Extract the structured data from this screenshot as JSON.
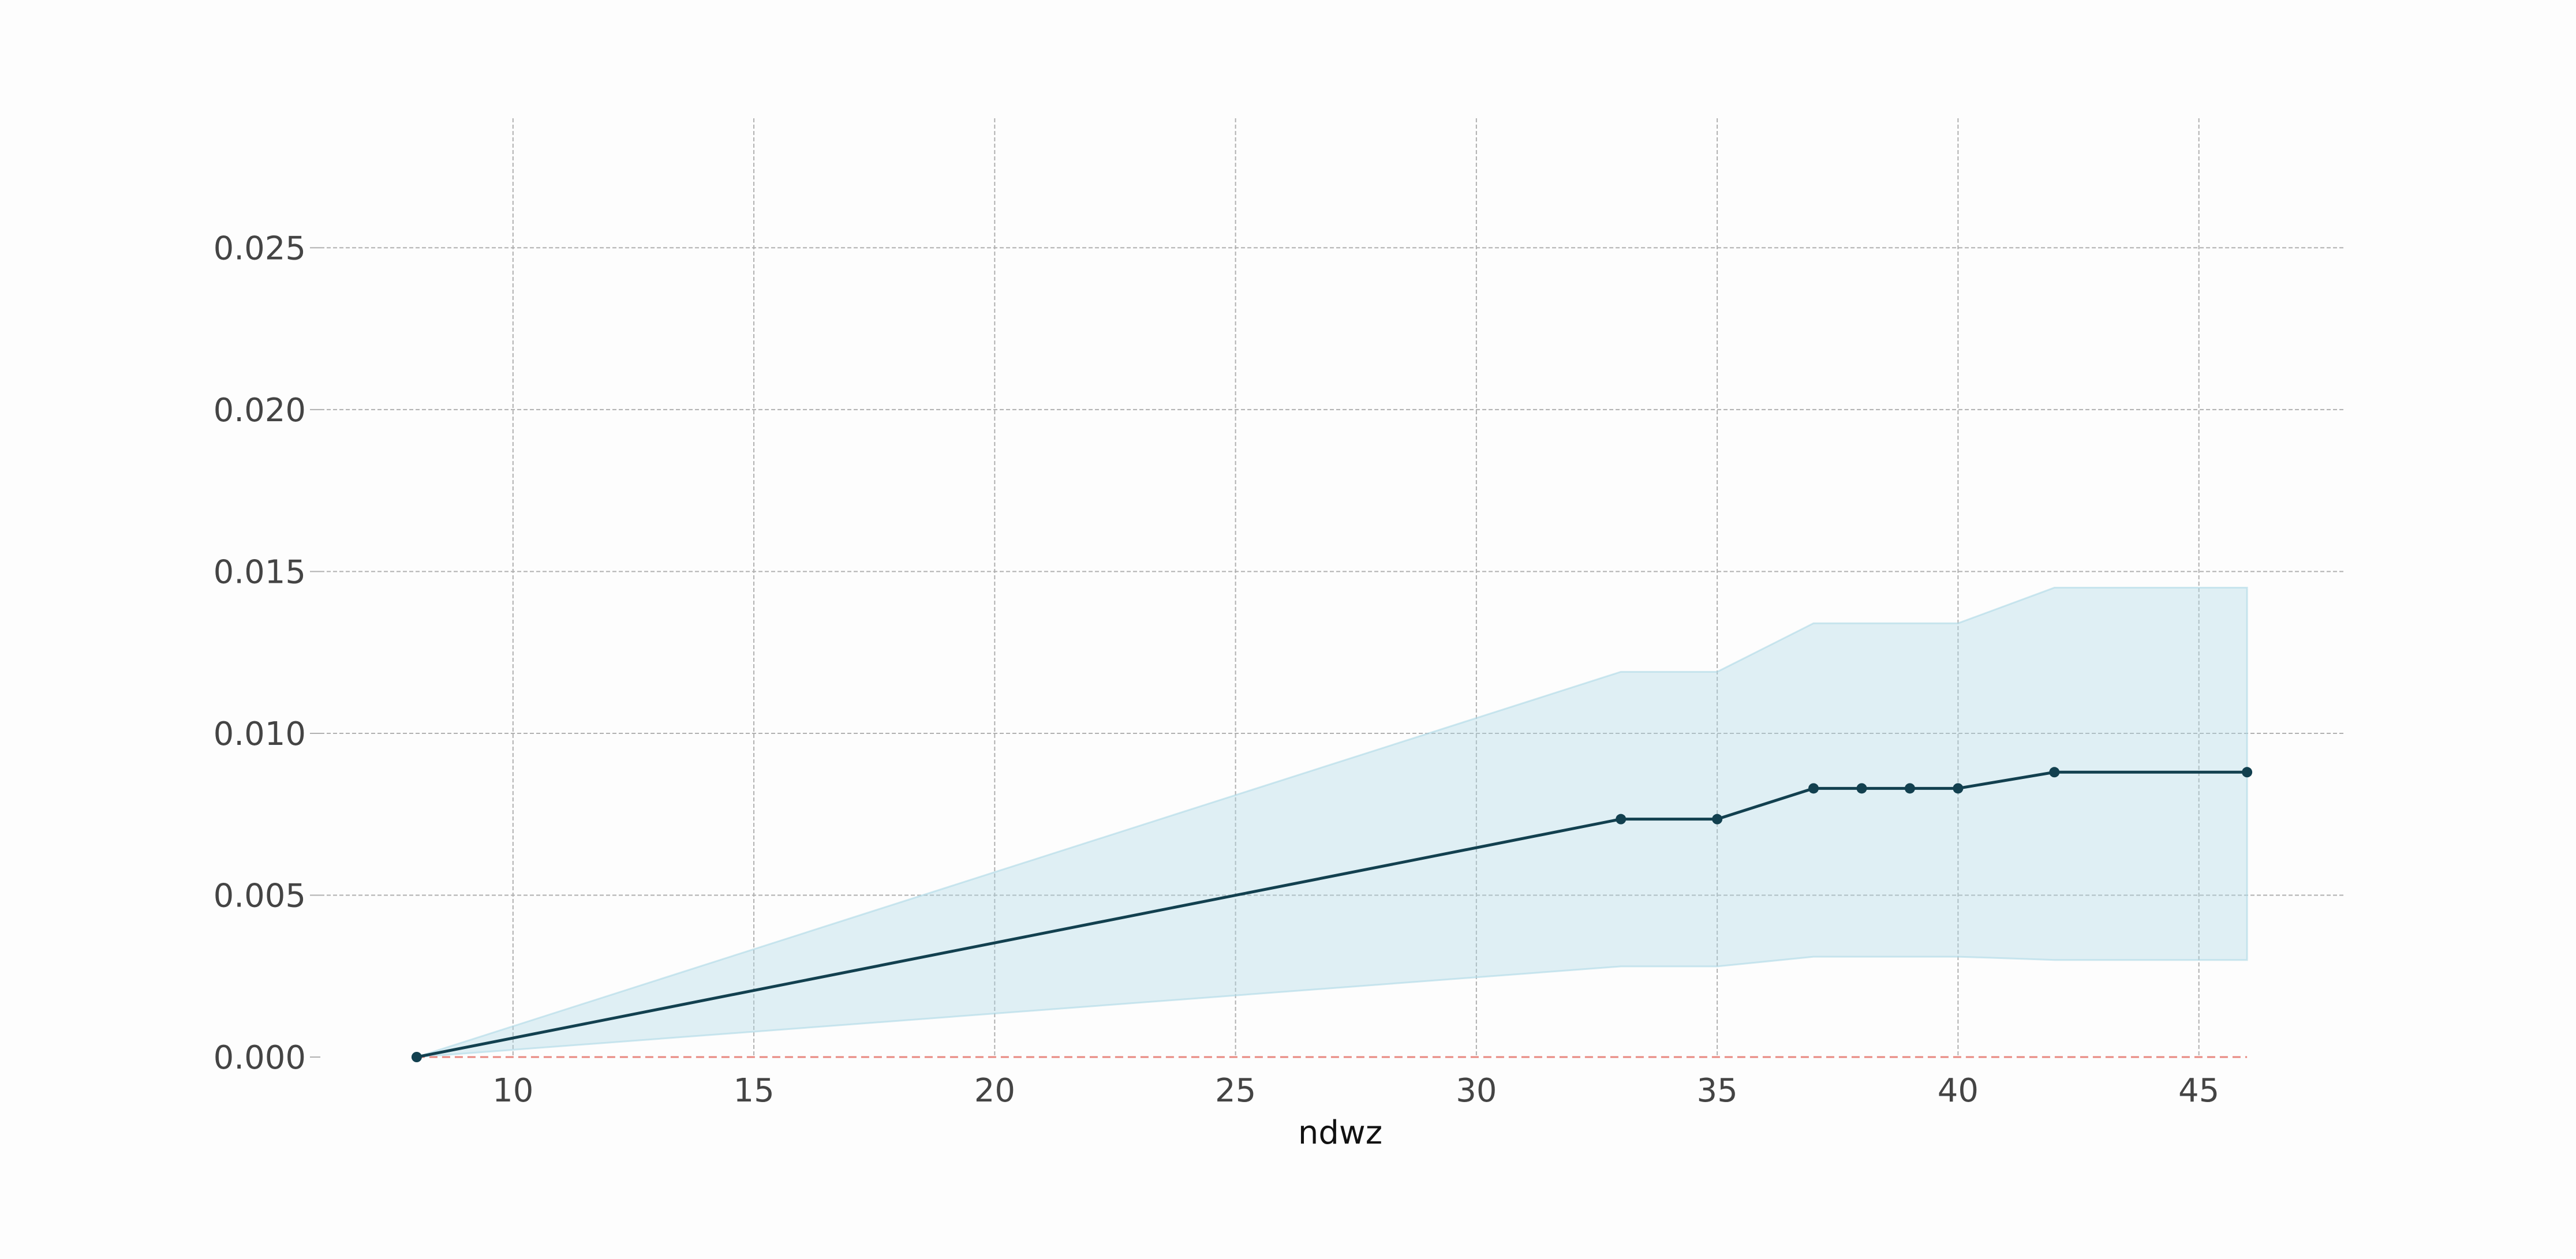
{
  "chart_data": {
    "type": "line",
    "title": "",
    "xlabel": "ndwz",
    "ylabel": "",
    "xlim": [
      6,
      48
    ],
    "ylim": [
      0,
      0.029
    ],
    "xticks": [
      10,
      15,
      20,
      25,
      30,
      35,
      40,
      45
    ],
    "xtick_labels": [
      "10",
      "15",
      "20",
      "25",
      "30",
      "35",
      "40",
      "45"
    ],
    "yticks": [
      0,
      0.005,
      0.01,
      0.015,
      0.02,
      0.025
    ],
    "ytick_labels": [
      "0.000",
      "0.005",
      "0.010",
      "0.015",
      "0.020",
      "0.025"
    ],
    "grid": true,
    "reference_line": {
      "y": 0,
      "color": "#e8877f",
      "style": "dashed"
    },
    "series": [
      {
        "x": [
          8,
          33,
          35,
          37,
          38,
          39,
          40,
          42,
          46
        ],
        "values": [
          0.0,
          0.00735,
          0.00735,
          0.0083,
          0.0083,
          0.0083,
          0.0083,
          0.0088,
          0.0088
        ],
        "lower": [
          0.0,
          0.0028,
          0.0028,
          0.0031,
          0.0031,
          0.0031,
          0.0031,
          0.003,
          0.003
        ],
        "upper": [
          0.0,
          0.0119,
          0.0119,
          0.0134,
          0.0134,
          0.0134,
          0.0134,
          0.0145,
          0.0145
        ],
        "color": "#12404f",
        "band_color": "#add8e6"
      }
    ]
  }
}
